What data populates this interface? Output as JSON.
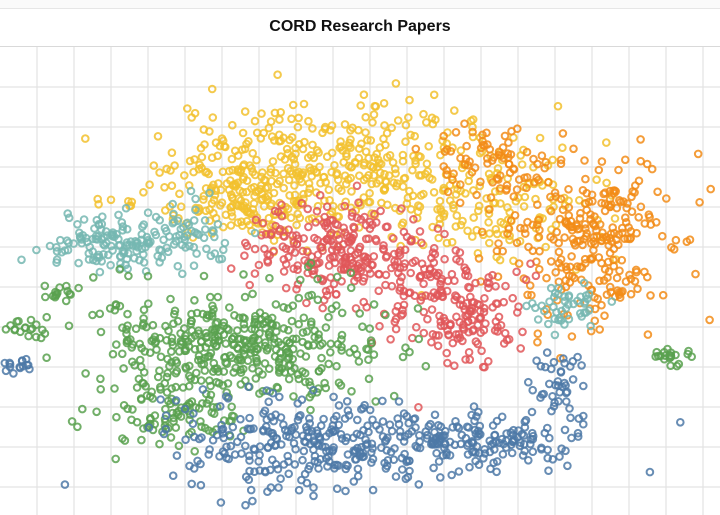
{
  "chart_data": {
    "type": "scatter",
    "title": "CORD Research Papers",
    "xlabel": "",
    "ylabel": "",
    "xlim": [
      0,
      100
    ],
    "ylim": [
      0,
      100
    ],
    "grid": true,
    "marker": "hollow-circle",
    "series": [
      {
        "color": "#f2c12e",
        "clusters": [
          {
            "cx": 48,
            "cy": 74,
            "sx": 13,
            "sy": 7,
            "n": 420
          },
          {
            "cx": 33,
            "cy": 67,
            "sx": 5,
            "sy": 5,
            "n": 120
          },
          {
            "cx": 70,
            "cy": 64,
            "sx": 6,
            "sy": 6,
            "n": 90
          }
        ]
      },
      {
        "color": "#f28c18",
        "clusters": [
          {
            "cx": 82,
            "cy": 58,
            "sx": 6,
            "sy": 9,
            "n": 280
          },
          {
            "cx": 68,
            "cy": 75,
            "sx": 4,
            "sy": 4,
            "n": 70
          }
        ]
      },
      {
        "color": "#e15759",
        "clusters": [
          {
            "cx": 47,
            "cy": 57,
            "sx": 6,
            "sy": 5,
            "n": 230
          },
          {
            "cx": 61,
            "cy": 47,
            "sx": 5,
            "sy": 5,
            "n": 150
          },
          {
            "cx": 66,
            "cy": 38,
            "sx": 3,
            "sy": 3,
            "n": 50
          }
        ]
      },
      {
        "color": "#76b7b2",
        "clusters": [
          {
            "cx": 15,
            "cy": 58,
            "sx": 4,
            "sy": 3,
            "n": 120
          },
          {
            "cx": 26,
            "cy": 60,
            "sx": 3,
            "sy": 4,
            "n": 60
          },
          {
            "cx": 79,
            "cy": 44,
            "sx": 3,
            "sy": 3,
            "n": 45
          }
        ]
      },
      {
        "color": "#59a14f",
        "clusters": [
          {
            "cx": 33,
            "cy": 36,
            "sx": 10,
            "sy": 6,
            "n": 430
          },
          {
            "cx": 24,
            "cy": 20,
            "sx": 5,
            "sy": 3,
            "n": 80
          },
          {
            "cx": 3,
            "cy": 40,
            "sx": 2,
            "sy": 1,
            "n": 20
          },
          {
            "cx": 9,
            "cy": 48,
            "sx": 1.5,
            "sy": 0.8,
            "n": 15
          },
          {
            "cx": 93,
            "cy": 34,
            "sx": 1.5,
            "sy": 1,
            "n": 20
          }
        ]
      },
      {
        "color": "#4e79a7",
        "clusters": [
          {
            "cx": 43,
            "cy": 15,
            "sx": 10,
            "sy": 5,
            "n": 300
          },
          {
            "cx": 68,
            "cy": 16,
            "sx": 7,
            "sy": 3,
            "n": 150
          },
          {
            "cx": 78,
            "cy": 27,
            "sx": 2,
            "sy": 4,
            "n": 40
          },
          {
            "cx": 3,
            "cy": 32,
            "sx": 1.5,
            "sy": 0.8,
            "n": 15
          }
        ]
      }
    ]
  }
}
